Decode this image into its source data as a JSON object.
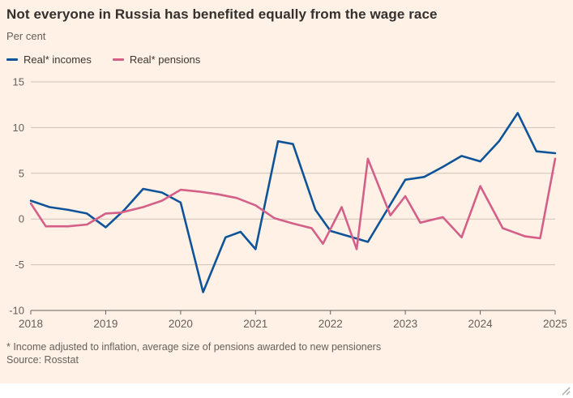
{
  "title": "Not everyone in Russia has benefited equally from the wage race",
  "subtitle": "Per cent",
  "legend": [
    {
      "label": "Real* incomes",
      "color": "#0F5499"
    },
    {
      "label": "Real* pensions",
      "color": "#D4608A"
    }
  ],
  "footnote": "* Income adjusted to inflation, average size of pensions awarded to new pensioners",
  "source": "Source: Rosstat",
  "colors": {
    "background": "#FFF1E5",
    "gridline": "#CDC2B8",
    "axis": "#66605C",
    "tick_text": "#66605C",
    "title_text": "#33302E"
  },
  "chart_data": {
    "type": "line",
    "title": "Not everyone in Russia has benefited equally from the wage race",
    "ylabel": "Per cent",
    "xlabel": "",
    "xlim": [
      2018,
      2025
    ],
    "ylim": [
      -10,
      15
    ],
    "yticks": [
      15,
      10,
      5,
      0,
      -5,
      -10
    ],
    "xticks": [
      2018,
      2019,
      2020,
      2021,
      2022,
      2023,
      2024,
      2025
    ],
    "grid": "horizontal",
    "legend_position": "top-left",
    "series": [
      {
        "name": "Real* incomes",
        "color": "#0F5499",
        "points": [
          [
            2018.0,
            2.0
          ],
          [
            2018.25,
            1.3
          ],
          [
            2018.5,
            1.0
          ],
          [
            2018.75,
            0.6
          ],
          [
            2019.0,
            -0.9
          ],
          [
            2019.25,
            1.0
          ],
          [
            2019.5,
            3.3
          ],
          [
            2019.75,
            2.9
          ],
          [
            2020.0,
            1.8
          ],
          [
            2020.3,
            -8.0
          ],
          [
            2020.6,
            -2.0
          ],
          [
            2020.8,
            -1.4
          ],
          [
            2021.0,
            -3.3
          ],
          [
            2021.3,
            8.5
          ],
          [
            2021.5,
            8.2
          ],
          [
            2021.8,
            1.0
          ],
          [
            2022.0,
            -1.3
          ],
          [
            2022.25,
            -1.9
          ],
          [
            2022.5,
            -2.5
          ],
          [
            2022.75,
            0.9
          ],
          [
            2023.0,
            4.3
          ],
          [
            2023.25,
            4.6
          ],
          [
            2023.5,
            5.7
          ],
          [
            2023.75,
            6.9
          ],
          [
            2024.0,
            6.3
          ],
          [
            2024.25,
            8.5
          ],
          [
            2024.5,
            11.6
          ],
          [
            2024.75,
            7.4
          ],
          [
            2025.0,
            7.2
          ]
        ]
      },
      {
        "name": "Real* pensions",
        "color": "#D4608A",
        "points": [
          [
            2018.0,
            1.7
          ],
          [
            2018.2,
            -0.8
          ],
          [
            2018.5,
            -0.8
          ],
          [
            2018.75,
            -0.6
          ],
          [
            2019.0,
            0.6
          ],
          [
            2019.2,
            0.7
          ],
          [
            2019.5,
            1.3
          ],
          [
            2019.75,
            2.0
          ],
          [
            2020.0,
            3.2
          ],
          [
            2020.25,
            3.0
          ],
          [
            2020.5,
            2.7
          ],
          [
            2020.75,
            2.3
          ],
          [
            2021.0,
            1.5
          ],
          [
            2021.25,
            0.1
          ],
          [
            2021.5,
            -0.5
          ],
          [
            2021.75,
            -1.0
          ],
          [
            2021.9,
            -2.7
          ],
          [
            2022.15,
            1.3
          ],
          [
            2022.35,
            -3.3
          ],
          [
            2022.5,
            6.6
          ],
          [
            2022.8,
            0.4
          ],
          [
            2023.0,
            2.5
          ],
          [
            2023.2,
            -0.4
          ],
          [
            2023.5,
            0.2
          ],
          [
            2023.75,
            -2.0
          ],
          [
            2024.0,
            3.6
          ],
          [
            2024.3,
            -1.0
          ],
          [
            2024.6,
            -1.9
          ],
          [
            2024.8,
            -2.1
          ],
          [
            2025.0,
            6.6
          ]
        ]
      }
    ]
  }
}
